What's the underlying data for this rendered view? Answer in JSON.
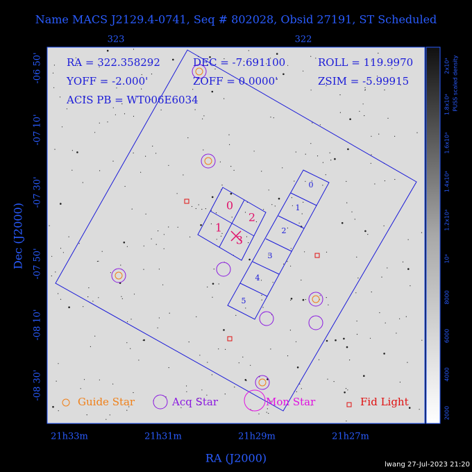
{
  "header": {
    "title": "Name MACS J2129.4-0741, Seq # 802028, Obsid 27191, ST Scheduled"
  },
  "info": [
    "RA = 322.358292",
    "DEC = -7.691100",
    "ROLL = 119.9970",
    "YOFF = -2.000'",
    "ZOFF = 0.0000'",
    "ZSIM = -5.99915",
    "ACIS PB = WT006E6034"
  ],
  "top_ticks": [
    "323",
    "322"
  ],
  "bottom_ticks": [
    "21h33m",
    "21h31m",
    "21h29m",
    "21h27m"
  ],
  "left_ticks": [
    "-06 50'",
    "-07 10'",
    "-07 30'",
    "-07 50'",
    "-08 10'",
    "-08 30'"
  ],
  "x_label": "RA (J2000)",
  "y_label": "Dec (J2000)",
  "chip_labels": {
    "i": [
      "0",
      "1",
      "2",
      "3"
    ],
    "s": [
      "0",
      "1",
      "2",
      "3",
      "4",
      "5"
    ]
  },
  "legend": [
    "Guide Star",
    "Acq Star",
    "Mon Star",
    "Fid Light"
  ],
  "colorbar": {
    "title": "PUSS scaled density",
    "labels": [
      "2000",
      "4000",
      "6000",
      "8000",
      "10⁴",
      "1.2x10⁴",
      "1.4x10⁴",
      "1.6x10⁴",
      "1.8x10⁴",
      "2x10⁴"
    ]
  },
  "footer": "lwang 27-Jul-2023 21:20"
}
